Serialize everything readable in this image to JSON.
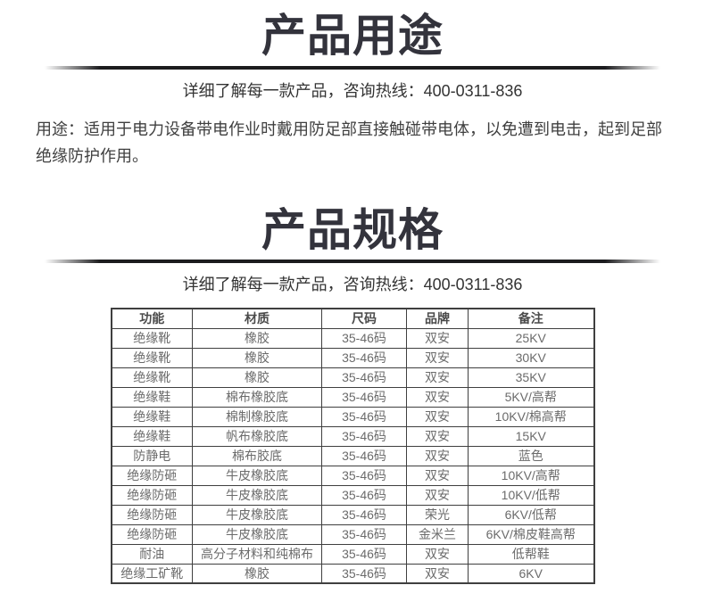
{
  "usage_section": {
    "title": "产品用途",
    "subtitle": "详细了解每一款产品，咨询热线：400-0311-836",
    "hotline": "400-0311-836",
    "description": "用途：适用于电力设备带电作业时戴用防足部直接触碰带电体，以免遭到电击，起到足部绝缘防护作用。"
  },
  "spec_section": {
    "title": "产品规格",
    "subtitle": "详细了解每一款产品，咨询热线：400-0311-836",
    "table": {
      "headers": [
        "功能",
        "材质",
        "尺码",
        "品牌",
        "备注"
      ],
      "rows": [
        [
          "绝缘靴",
          "橡胶",
          "35-46码",
          "双安",
          "25KV"
        ],
        [
          "绝缘靴",
          "橡胶",
          "35-46码",
          "双安",
          "30KV"
        ],
        [
          "绝缘靴",
          "橡胶",
          "35-46码",
          "双安",
          "35KV"
        ],
        [
          "绝缘鞋",
          "棉布橡胶底",
          "35-46码",
          "双安",
          "5KV/高帮"
        ],
        [
          "绝缘鞋",
          "棉制橡胶底",
          "35-46码",
          "双安",
          "10KV/棉高帮"
        ],
        [
          "绝缘鞋",
          "帆布橡胶底",
          "35-46码",
          "双安",
          "15KV"
        ],
        [
          "防静电",
          "棉布胶底",
          "35-46码",
          "双安",
          "蓝色"
        ],
        [
          "绝缘防砸",
          "牛皮橡胶底",
          "35-46码",
          "双安",
          "10KV/高帮"
        ],
        [
          "绝缘防砸",
          "牛皮橡胶底",
          "35-46码",
          "双安",
          "10KV/低帮"
        ],
        [
          "绝缘防砸",
          "牛皮橡胶底",
          "35-46码",
          "荣光",
          "6KV/低帮"
        ],
        [
          "绝缘防砸",
          "牛皮橡胶底",
          "35-46码",
          "金米兰",
          "6KV/棉皮鞋高帮"
        ],
        [
          "耐油",
          "高分子材料和纯棉布",
          "35-46码",
          "双安",
          "低帮鞋"
        ],
        [
          "绝缘工矿靴",
          "橡胶",
          "35-46码",
          "双安",
          "6KV"
        ]
      ]
    }
  },
  "colors": {
    "title": "#33333c",
    "body_text": "#3f3f3f",
    "table_border": "#3f3f3f",
    "table_text": "#6b6b6b"
  }
}
